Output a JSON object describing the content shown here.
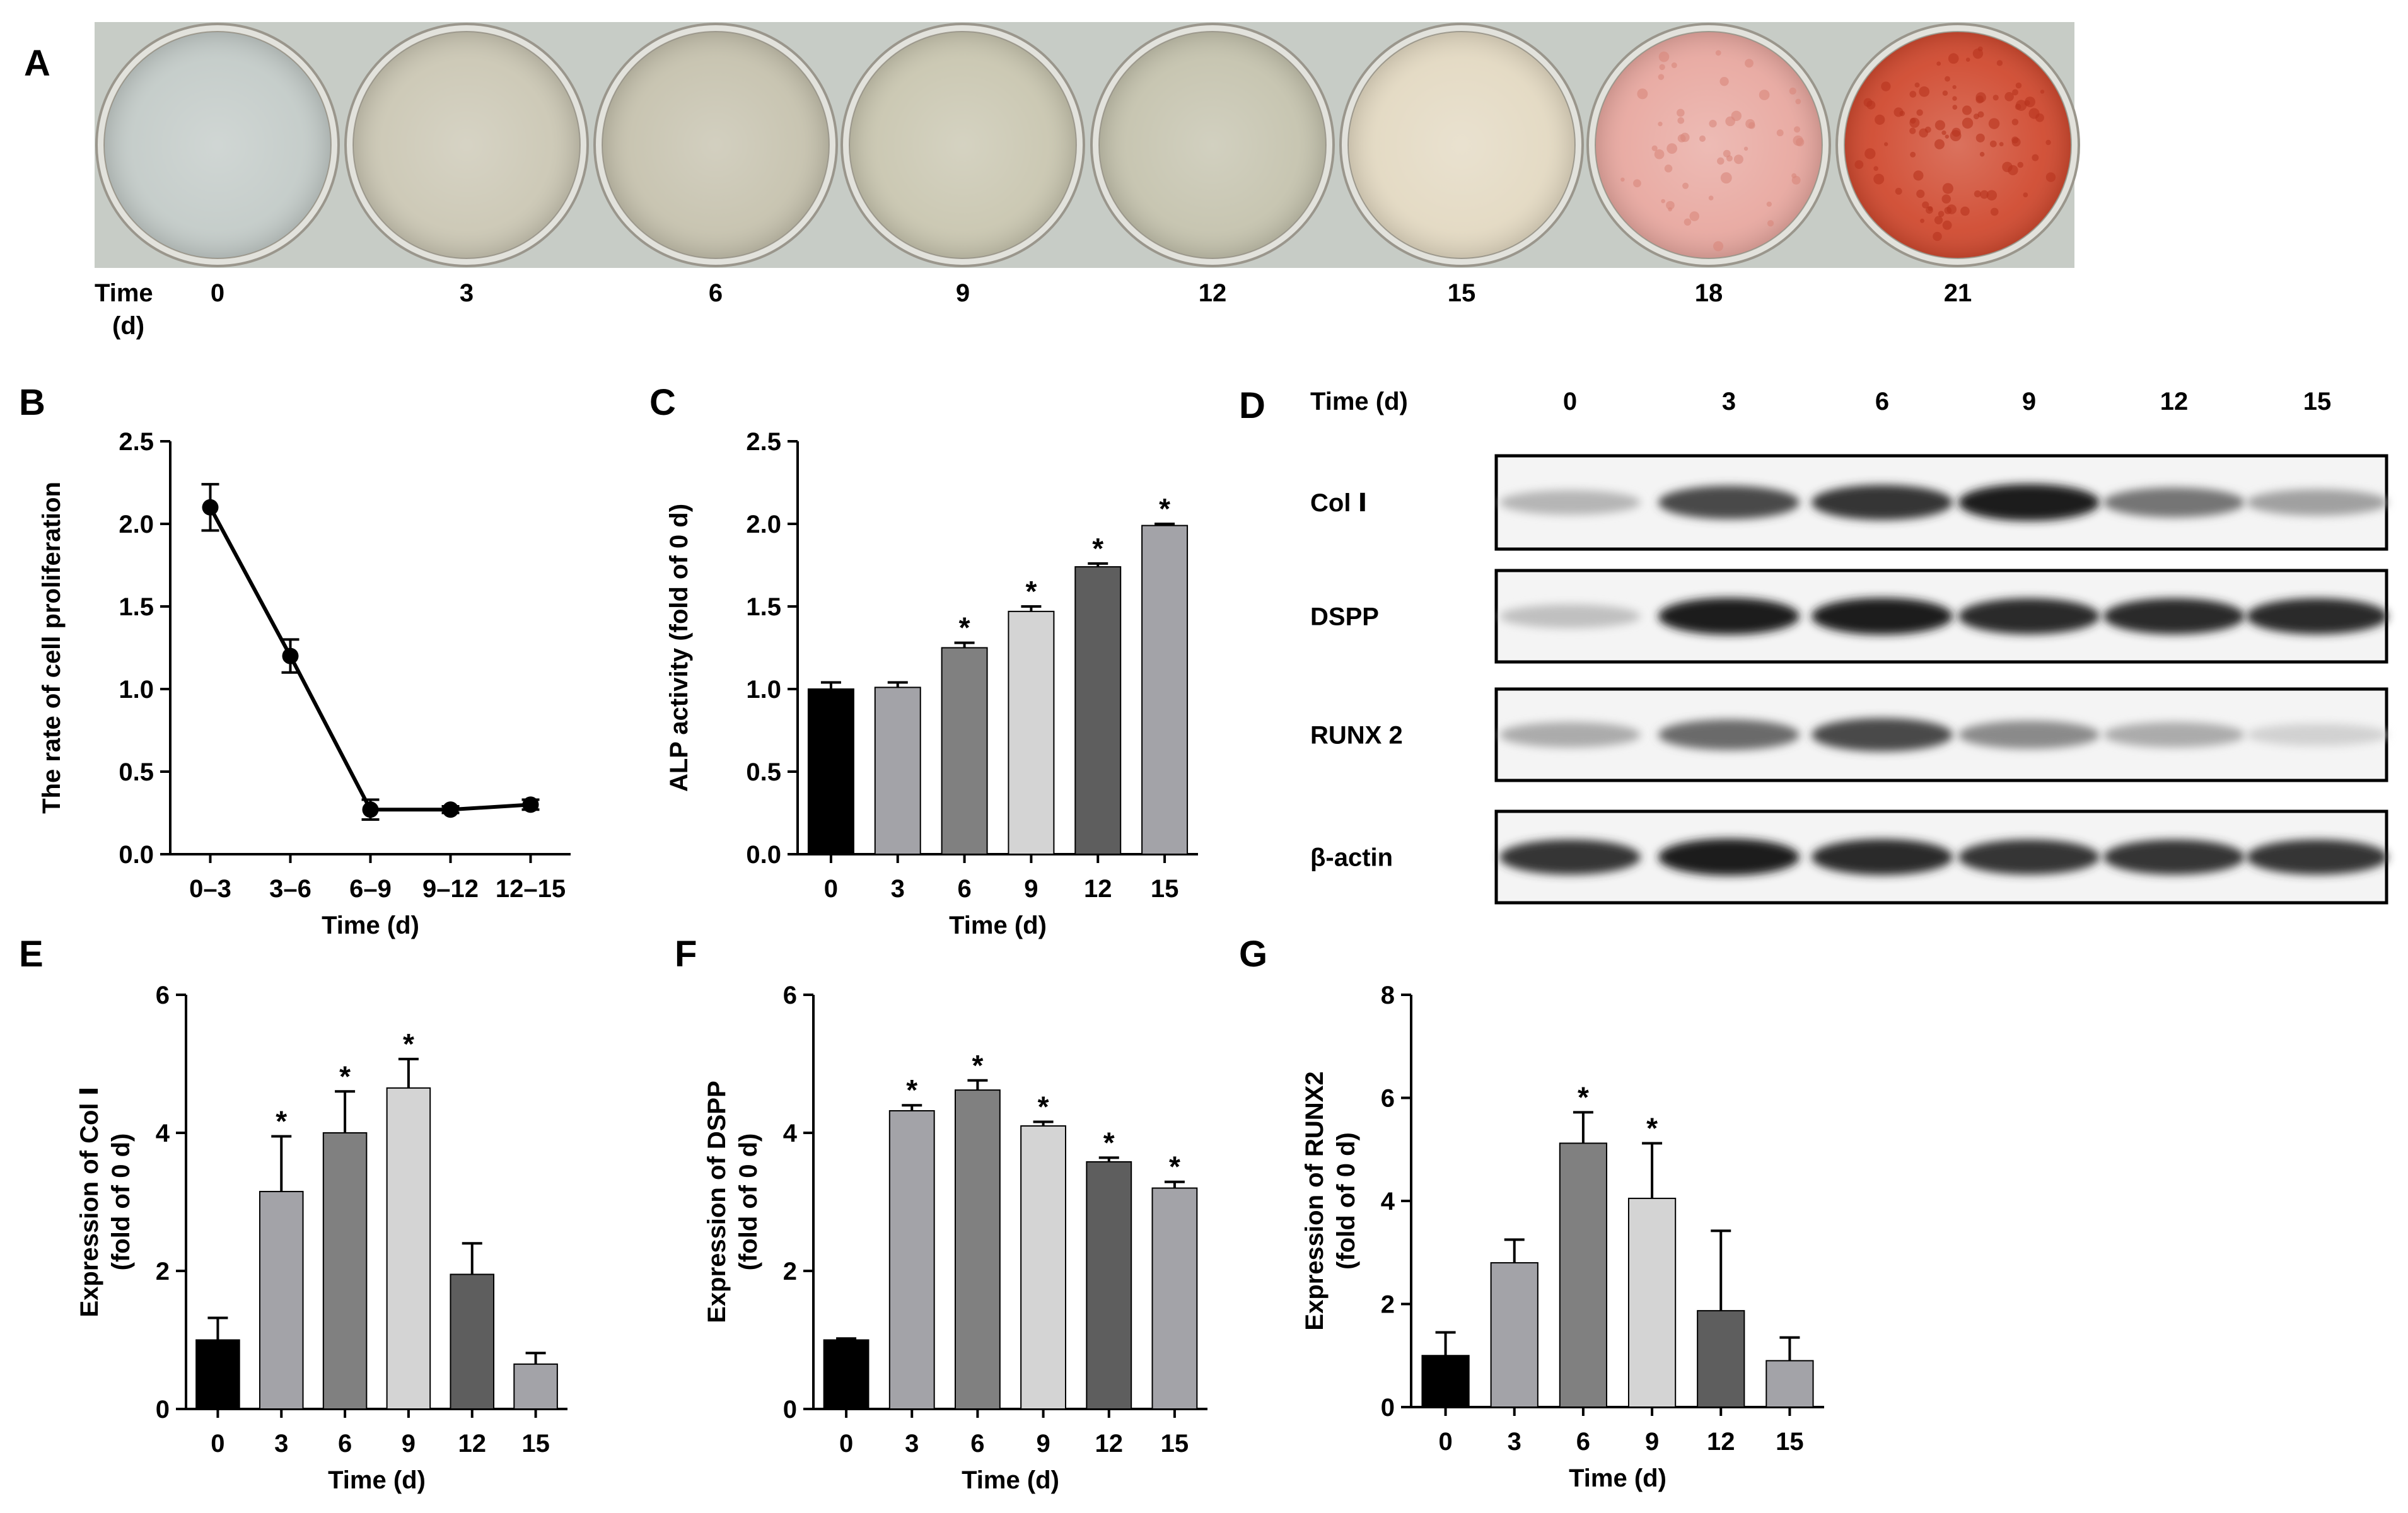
{
  "panels": {
    "A": {
      "label": "A",
      "time_label_line1": "Time",
      "time_label_line2": "(d)",
      "times": [
        "0",
        "3",
        "6",
        "9",
        "12",
        "15",
        "18",
        "21"
      ],
      "dish_interior_colors": [
        "#c3cbc8",
        "#cbc7b4",
        "#c6c2ae",
        "#c9c6b0",
        "#c5c3ae",
        "#e3d9c2",
        "#e8a8a0",
        "#d04a30"
      ],
      "strip_color": "#c7ccc6"
    },
    "B": {
      "label": "B"
    },
    "C": {
      "label": "C"
    },
    "D": {
      "label": "D",
      "time_label": "Time (d)",
      "times": [
        "0",
        "3",
        "6",
        "9",
        "12",
        "15"
      ],
      "proteins": [
        "Col Ⅰ",
        "DSPP",
        "RUNX 2",
        "β-actin"
      ],
      "band_intensity": [
        [
          0.25,
          0.75,
          0.85,
          0.95,
          0.55,
          0.35
        ],
        [
          0.2,
          0.95,
          0.95,
          0.9,
          0.9,
          0.9
        ],
        [
          0.3,
          0.6,
          0.75,
          0.45,
          0.3,
          0.12
        ],
        [
          0.85,
          0.95,
          0.9,
          0.85,
          0.85,
          0.85
        ]
      ]
    },
    "E": {
      "label": "E"
    },
    "F": {
      "label": "F"
    },
    "G": {
      "label": "G"
    }
  },
  "chart_data": [
    {
      "panel": "B",
      "type": "line",
      "categories": [
        "0–3",
        "3–6",
        "6–9",
        "9–12",
        "12–15"
      ],
      "values": [
        2.1,
        1.2,
        0.27,
        0.27,
        0.3
      ],
      "errors": [
        0.14,
        0.1,
        0.06,
        0.02,
        0.03
      ],
      "xlabel": "Time (d)",
      "ylabel": "The rate of cell proliferation",
      "ylim": [
        0,
        2.5
      ],
      "yticks": [
        "0.0",
        "0.5",
        "1.0",
        "1.5",
        "2.0",
        "2.5"
      ]
    },
    {
      "panel": "C",
      "type": "bar",
      "categories": [
        "0",
        "3",
        "6",
        "9",
        "12",
        "15"
      ],
      "values": [
        1.0,
        1.01,
        1.25,
        1.47,
        1.74,
        1.99
      ],
      "errors": [
        0.04,
        0.03,
        0.03,
        0.03,
        0.02,
        0.01
      ],
      "significant": [
        "",
        "",
        "*",
        "*",
        "*",
        "*"
      ],
      "bar_colors": [
        "#000000",
        "#a3a3a8",
        "#808080",
        "#d4d4d4",
        "#5e5e5e",
        "#a3a3a8"
      ],
      "xlabel": "Time (d)",
      "ylabel": "ALP activity (fold of 0 d)",
      "ylim": [
        0,
        2.5
      ],
      "yticks": [
        "0.0",
        "0.5",
        "1.0",
        "1.5",
        "2.0",
        "2.5"
      ]
    },
    {
      "panel": "E",
      "type": "bar",
      "categories": [
        "0",
        "3",
        "6",
        "9",
        "12",
        "15"
      ],
      "values": [
        1.0,
        3.15,
        4.0,
        4.65,
        1.95,
        0.65
      ],
      "errors": [
        0.32,
        0.8,
        0.6,
        0.42,
        0.45,
        0.16
      ],
      "significant": [
        "",
        "*",
        "*",
        "*",
        "",
        ""
      ],
      "bar_colors": [
        "#000000",
        "#a3a3a8",
        "#808080",
        "#d4d4d4",
        "#5e5e5e",
        "#a3a3a8"
      ],
      "xlabel": "Time (d)",
      "ylabel_line1": "Expression of Col Ⅰ",
      "ylabel_line2": "(fold of 0 d)",
      "ylim": [
        0,
        6
      ],
      "yticks": [
        "0",
        "2",
        "4",
        "6"
      ]
    },
    {
      "panel": "F",
      "type": "bar",
      "categories": [
        "0",
        "3",
        "6",
        "9",
        "12",
        "15"
      ],
      "values": [
        1.0,
        4.32,
        4.62,
        4.1,
        3.58,
        3.2
      ],
      "errors": [
        0.02,
        0.08,
        0.14,
        0.06,
        0.06,
        0.09
      ],
      "significant": [
        "",
        "*",
        "*",
        "*",
        "*",
        "*"
      ],
      "bar_colors": [
        "#000000",
        "#a3a3a8",
        "#808080",
        "#d4d4d4",
        "#5e5e5e",
        "#a3a3a8"
      ],
      "xlabel": "Time (d)",
      "ylabel_line1": "Expression of DSPP",
      "ylabel_line2": "(fold of 0 d)",
      "ylim": [
        0,
        6
      ],
      "yticks": [
        "0",
        "2",
        "4",
        "6"
      ]
    },
    {
      "panel": "G",
      "type": "bar",
      "categories": [
        "0",
        "3",
        "6",
        "9",
        "12",
        "15"
      ],
      "values": [
        1.0,
        2.8,
        5.12,
        4.05,
        1.87,
        0.9
      ],
      "errors": [
        0.45,
        0.45,
        0.6,
        1.07,
        1.55,
        0.45
      ],
      "significant": [
        "",
        "",
        "*",
        "*",
        "",
        ""
      ],
      "bar_colors": [
        "#000000",
        "#a3a3a8",
        "#808080",
        "#d4d4d4",
        "#5e5e5e",
        "#a3a3a8"
      ],
      "xlabel": "Time (d)",
      "ylabel_line1": "Expression of RUNX2",
      "ylabel_line2": "(fold of 0 d)",
      "ylim": [
        0,
        8
      ],
      "yticks": [
        "0",
        "2",
        "4",
        "6",
        "8"
      ]
    }
  ]
}
